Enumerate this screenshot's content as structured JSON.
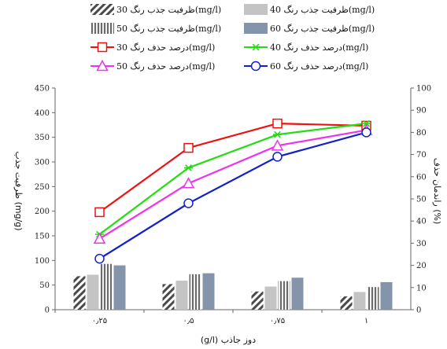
{
  "chart_data": {
    "type": "bar+line",
    "xlabel": "دوز جاذب (g/l)",
    "ylabel_left": "ظرفیت جذب (mg/g)",
    "ylabel_right": "راندمان حذف (%)",
    "categories": [
      "۰٫۲۵",
      "۰٫۵",
      "۰٫۷۵",
      "۱"
    ],
    "ylim_left": [
      0,
      450
    ],
    "yticks_left": [
      "0",
      "50",
      "100",
      "150",
      "200",
      "250",
      "300",
      "350",
      "400",
      "450"
    ],
    "ylim_right": [
      0,
      100
    ],
    "yticks_right": [
      "0",
      "10",
      "20",
      "30",
      "40",
      "50",
      "60",
      "70",
      "80",
      "90",
      "100"
    ],
    "grid": false,
    "legend_position": "top",
    "bar_series": [
      {
        "name": "ظرفیت جذب رنگ 30(mg/l)",
        "pattern": "diagonal-hatch",
        "color": "#555555",
        "values": [
          68,
          52,
          37,
          27
        ]
      },
      {
        "name": "ظرفیت جذب رنگ 40(mg/l)",
        "pattern": "solid",
        "color": "#c4c4c4",
        "values": [
          71,
          59,
          47,
          36
        ]
      },
      {
        "name": "ظرفیت جذب رنگ 50(mg/l)",
        "pattern": "vertical-stripes",
        "color": "#7a7a7a",
        "values": [
          93,
          72,
          58,
          46
        ]
      },
      {
        "name": "ظرفیت جذب رنگ 60(mg/l)",
        "pattern": "solid",
        "color": "#8394ab",
        "values": [
          90,
          74,
          65,
          56
        ]
      }
    ],
    "line_series": [
      {
        "name": "درصد حذف رنگ 30(mg/l)",
        "color": "#ee1111",
        "marker": "square",
        "values": [
          44,
          73,
          84,
          83
        ]
      },
      {
        "name": "درصد حذف رنگ 40(mg/l)",
        "color": "#22dd11",
        "marker": "star",
        "values": [
          34,
          64,
          79,
          84
        ]
      },
      {
        "name": "درصد حذف رنگ 50(mg/l)",
        "color": "#ee33ee",
        "marker": "triangle",
        "values": [
          32,
          57,
          74,
          81
        ]
      },
      {
        "name": "درصد حذف رنگ 60(mg/l)",
        "color": "#1122cc",
        "marker": "circle",
        "values": [
          23,
          48,
          69,
          80
        ]
      }
    ]
  }
}
